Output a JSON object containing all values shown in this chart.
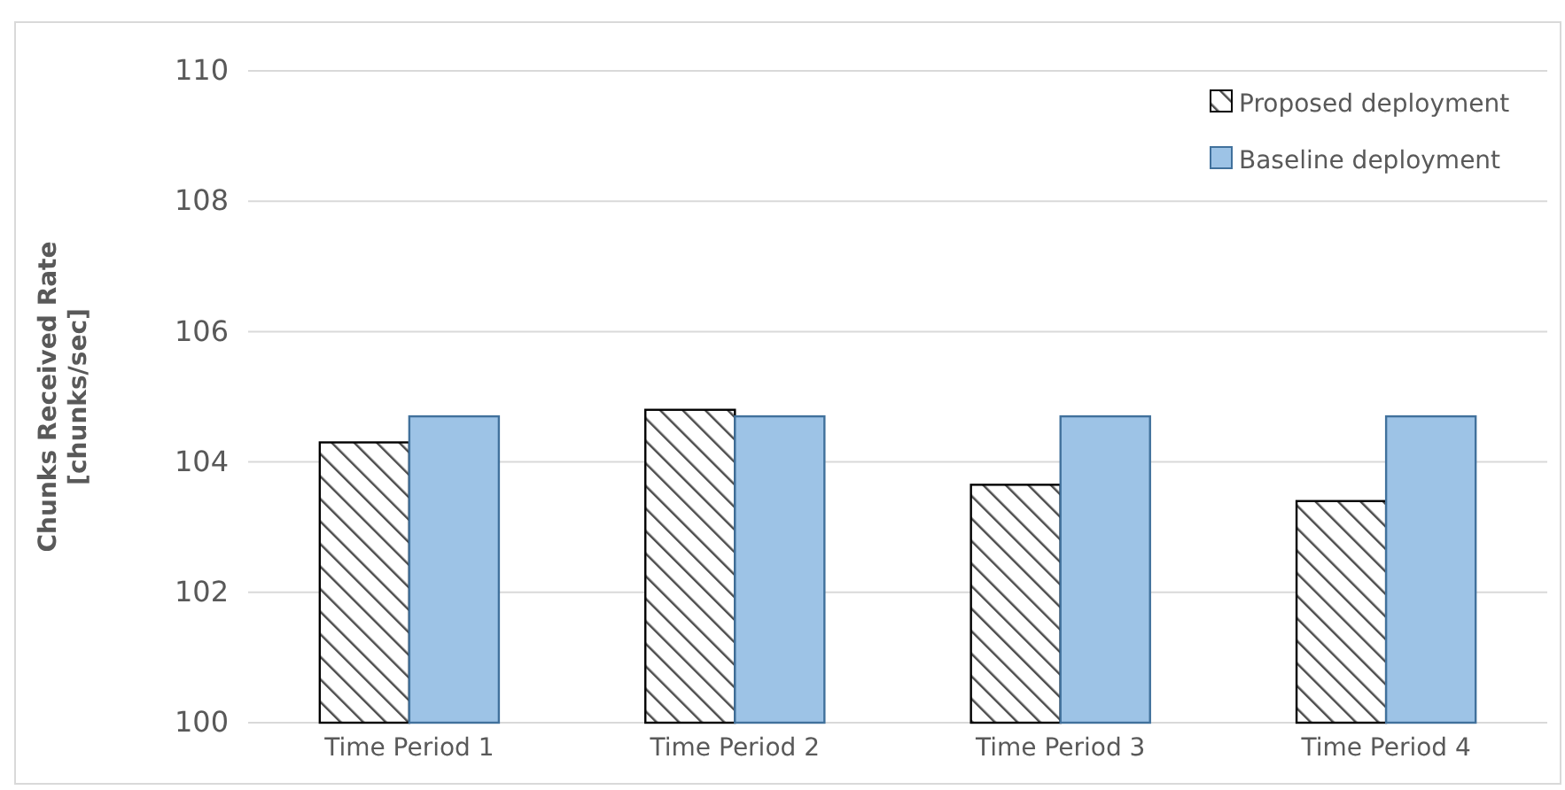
{
  "chart_data": {
    "type": "bar",
    "ylabel": "Chunks Received Rate\n[chunks/sec]",
    "categories": [
      "Time Period 1",
      "Time Period 2",
      "Time Period 3",
      "Time Period 4"
    ],
    "series": [
      {
        "name": "Proposed deployment",
        "color": "#000000",
        "values": [
          104.3,
          104.8,
          103.65,
          103.4
        ]
      },
      {
        "name": "Baseline deployment",
        "color": "#9dc3e6",
        "values": [
          104.7,
          104.7,
          104.7,
          104.7
        ]
      }
    ],
    "ylim": [
      100,
      110
    ],
    "yticks": [
      100,
      102,
      104,
      106,
      108,
      110
    ],
    "grid": "y",
    "legend": "top right"
  }
}
